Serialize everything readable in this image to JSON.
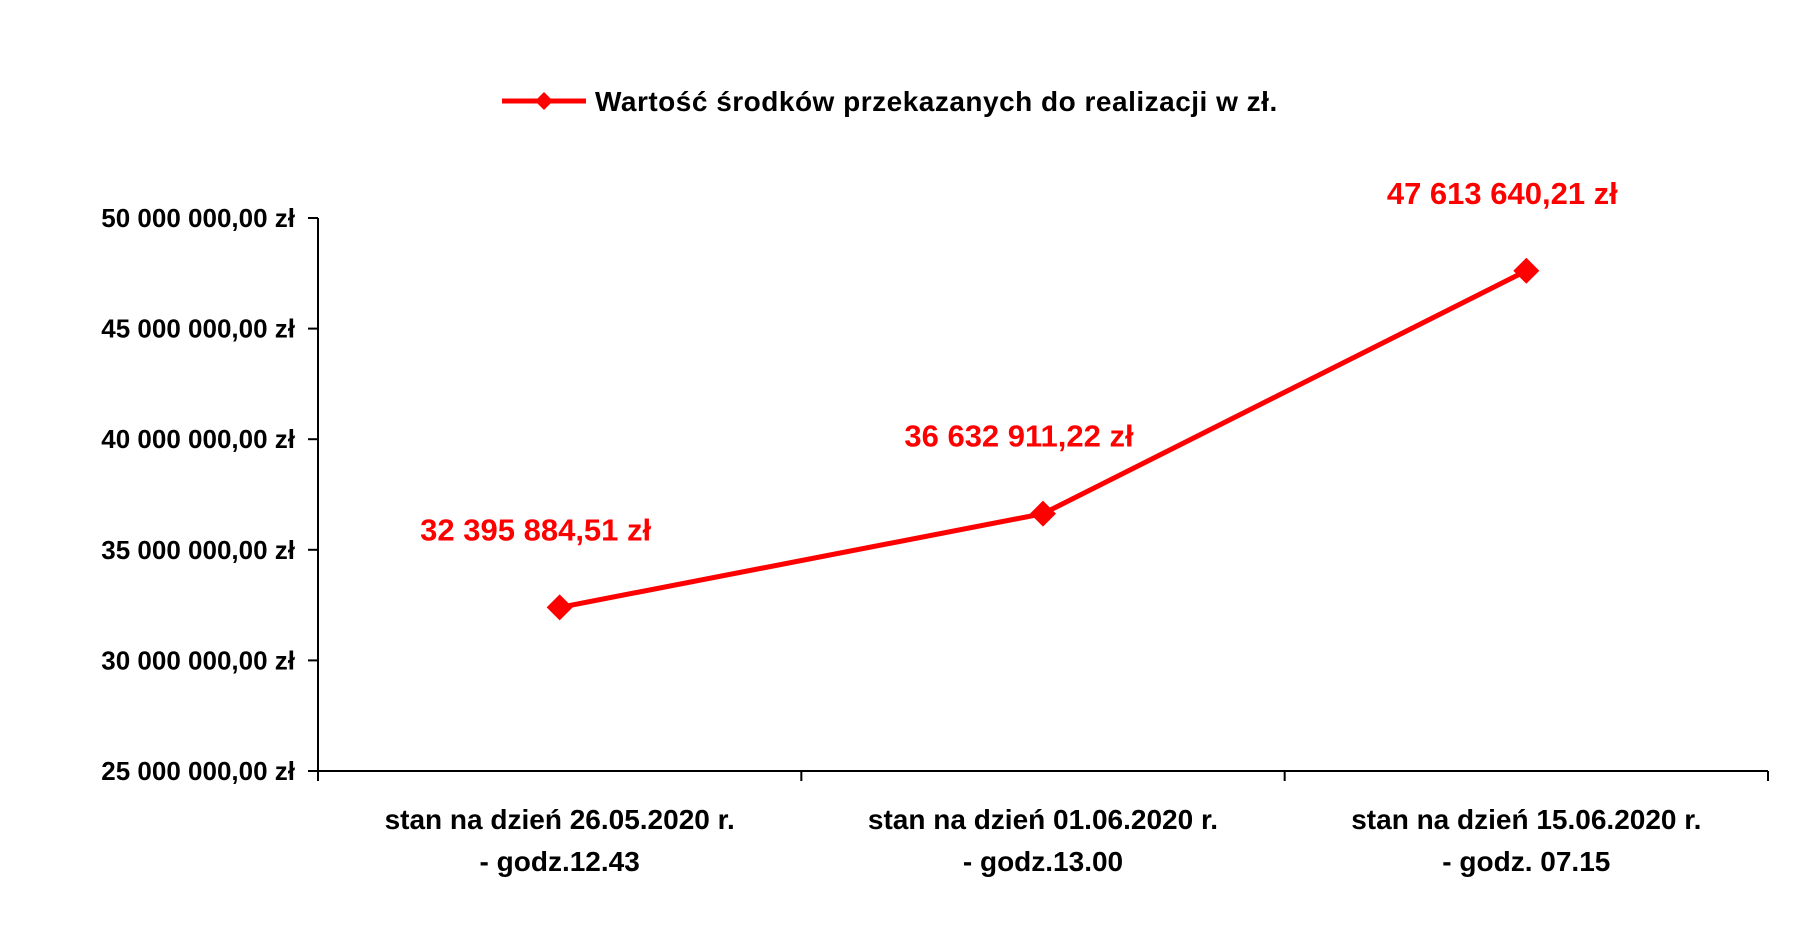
{
  "chart_data": {
    "type": "line",
    "categories": [
      [
        "stan na dzień 26.05.2020 r.",
        "- godz.12.43"
      ],
      [
        "stan na dzień 01.06.2020 r.",
        "- godz.13.00"
      ],
      [
        "stan na dzień 15.06.2020 r.",
        "- godz. 07.15"
      ]
    ],
    "series": [
      {
        "name": "Wartość środków przekazanych do realizacji w zł.",
        "values": [
          32395884.51,
          36632911.22,
          47613640.21
        ],
        "data_labels": [
          "32 395 884,51 zł",
          "36 632 911,22 zł",
          "47 613 640,21 zł"
        ],
        "color": "#ff0000",
        "marker": "diamond"
      }
    ],
    "ylim": [
      25000000,
      50000000
    ],
    "yticks": [
      25000000,
      30000000,
      35000000,
      40000000,
      45000000,
      50000000
    ],
    "ytick_labels": [
      "25 000 000,00 zł",
      "30 000 000,00 zł",
      "35 000 000,00 zł",
      "40 000 000,00 zł",
      "45 000 000,00 zł",
      "50 000 000,00 zł"
    ],
    "grid": false,
    "legend_position": "top-center",
    "data_label_color": "#ff0000"
  }
}
